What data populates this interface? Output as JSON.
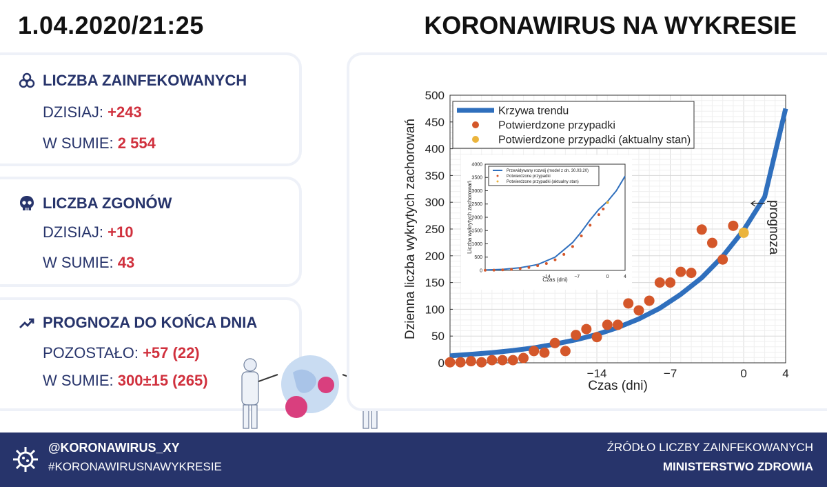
{
  "header": {
    "datetime": "1.04.2020/21:25",
    "title": "KORONAWIRUS NA WYKRESIE"
  },
  "infected": {
    "heading": "LICZBA ZAINFEKOWANYCH",
    "today_label": "DZISIAJ:",
    "today_value": "+243",
    "total_label": "W SUMIE:",
    "total_value": "2 554",
    "icon": "biohazard-icon"
  },
  "deaths": {
    "heading": "LICZBA ZGONÓW",
    "today_label": "DZISIAJ:",
    "today_value": "+10",
    "total_label": "W SUMIE:",
    "total_value": "43",
    "icon": "skull-icon"
  },
  "forecast": {
    "heading": "PROGNOZA DO KOŃCA DNIA",
    "remaining_label": "POZOSTAŁO:",
    "remaining_value": "+57 (22)",
    "total_label": "W SUMIE:",
    "total_value": "300±15 (265)",
    "icon": "trend-up-icon"
  },
  "footer": {
    "handle": "@KORONAWIRUS_XY",
    "hashtag": "#KORONAWIRUSNAWYKRESIE",
    "source_label": "ŹRÓDŁO LICZBY ZAINFEKOWANYCH",
    "source": "MINISTERSTWO ZDROWIA"
  },
  "colors": {
    "navy": "#27346b",
    "red": "#d0303d",
    "trend": "#2f6fbd",
    "points": "#d4572a",
    "current": "#ebb43c"
  },
  "chart_data": [
    {
      "type": "scatter",
      "xlabel": "Czas (dni)",
      "ylabel": "Dzienna liczba wykrytych zachorowań",
      "xlim": [
        -28,
        4
      ],
      "ylim": [
        0,
        500
      ],
      "xticks": [
        -14,
        -7,
        0,
        4
      ],
      "yticks": [
        0,
        50,
        100,
        150,
        200,
        250,
        300,
        350,
        400,
        450,
        500
      ],
      "grid": true,
      "legend_position": "top-left",
      "annotation": "prognoza",
      "series": [
        {
          "name": "Krzywa trendu",
          "kind": "line",
          "x": [
            -28,
            -26,
            -24,
            -22,
            -20,
            -18,
            -16,
            -14,
            -12,
            -10,
            -8,
            -6,
            -4,
            -2,
            0,
            2,
            4
          ],
          "y": [
            13,
            16,
            19,
            23,
            28,
            35,
            43,
            53,
            66,
            82,
            102,
            128,
            159,
            199,
            248,
            310,
            475
          ]
        },
        {
          "name": "Potwierdzone przypadki",
          "kind": "scatter",
          "x": [
            -28,
            -27,
            -26,
            -25,
            -24,
            -23,
            -22,
            -21,
            -20,
            -19,
            -18,
            -17,
            -16,
            -15,
            -14,
            -13,
            -12,
            -11,
            -10,
            -9,
            -8,
            -7,
            -6,
            -5,
            -4,
            -3,
            -2,
            -1
          ],
          "y": [
            1,
            1,
            3,
            1,
            5,
            5,
            5,
            9,
            22,
            19,
            37,
            22,
            52,
            63,
            48,
            71,
            71,
            111,
            98,
            116,
            150,
            150,
            170,
            168,
            249,
            224,
            193,
            256
          ]
        },
        {
          "name": "Potwierdzone przypadki (aktualny stan)",
          "kind": "scatter",
          "x": [
            0
          ],
          "y": [
            243
          ]
        }
      ]
    },
    {
      "type": "scatter",
      "xlabel": "Czas (dni)",
      "ylabel": "Liczba wykrytych zachorowań",
      "xlim": [
        -28,
        4
      ],
      "ylim": [
        0,
        4000
      ],
      "xticks": [
        -14,
        -7,
        0,
        4
      ],
      "yticks": [
        0,
        500,
        1000,
        1500,
        2000,
        2500,
        3000,
        3500,
        4000
      ],
      "legend_position": "top-left",
      "series": [
        {
          "name": "Przewidywany rozwój (model z dn. 30.03.20)",
          "kind": "line",
          "x": [
            -28,
            -24,
            -20,
            -16,
            -12,
            -8,
            -6,
            -4,
            -2,
            0,
            2,
            4
          ],
          "y": [
            15,
            40,
            100,
            220,
            500,
            1050,
            1450,
            1900,
            2300,
            2600,
            3000,
            3550
          ]
        },
        {
          "name": "Potwierdzone przypadki",
          "kind": "scatter",
          "x": [
            -28,
            -26,
            -24,
            -22,
            -20,
            -18,
            -16,
            -14,
            -12,
            -10,
            -8,
            -6,
            -4,
            -2,
            -1
          ],
          "y": [
            5,
            10,
            20,
            40,
            70,
            110,
            180,
            260,
            400,
            600,
            900,
            1300,
            1700,
            2100,
            2311
          ]
        },
        {
          "name": "Potwierdzone przypadki (aktualny stan)",
          "kind": "scatter",
          "x": [
            0
          ],
          "y": [
            2554
          ]
        }
      ]
    }
  ]
}
